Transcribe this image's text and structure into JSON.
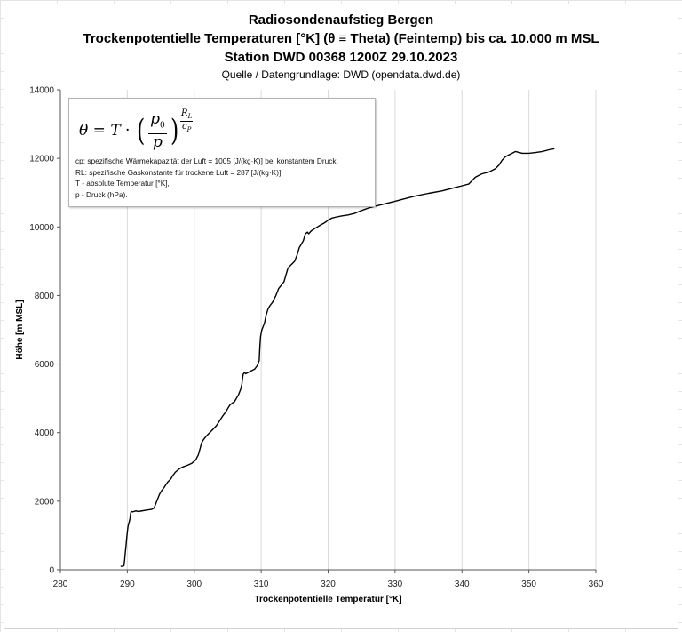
{
  "chart_data": {
    "type": "line",
    "title": [
      "Radiosondenaufstieg Bergen",
      "Trockenpotentielle Temperaturen [°K] (θ ≡ Theta) (Feintemp) bis ca. 10.000 m MSL",
      "Station DWD 00368 1200Z 29.10.2023"
    ],
    "subtitle": "Quelle / Datengrundlage: DWD (opendata.dwd.de)",
    "xlabel": "Trockenpotentielle Temperatur [°K]",
    "ylabel": "Höhe [m MSL]",
    "xlim": [
      280,
      360
    ],
    "ylim": [
      0,
      14000
    ],
    "x_ticks": [
      "280",
      "290",
      "300",
      "310",
      "320",
      "330",
      "340",
      "350",
      "360"
    ],
    "y_ticks": [
      "0",
      "2000",
      "4000",
      "6000",
      "8000",
      "10000",
      "12000",
      "14000"
    ],
    "grid": "vertical",
    "line_color": "#000000",
    "series": [
      {
        "x": [
          289.0,
          289.3,
          289.5,
          289.6,
          289.7,
          289.8,
          289.9,
          290.0,
          290.1,
          290.2,
          290.3,
          290.4,
          290.5,
          290.6,
          290.8,
          291.0,
          291.3,
          291.6,
          292.0,
          292.8,
          293.6,
          294.0,
          294.2,
          294.5,
          294.8,
          295.1,
          295.5,
          296.0,
          296.5,
          296.8,
          297.0,
          297.2,
          297.5,
          297.8,
          298.3,
          299.0,
          299.6,
          300.2,
          300.6,
          300.9,
          301.1,
          301.4,
          301.8,
          302.3,
          302.8,
          303.3,
          303.8,
          304.3,
          304.7,
          305.0,
          305.3,
          305.6,
          306.0,
          306.3,
          306.6,
          306.9,
          307.1,
          307.2,
          307.3,
          307.5,
          307.7,
          307.9,
          308.5,
          309.0,
          309.4,
          309.7,
          309.8,
          309.9,
          310.0,
          310.1,
          310.3,
          310.5,
          310.7,
          311.0,
          311.3,
          311.7,
          312.2,
          312.6,
          313.0,
          313.4,
          313.7,
          314.0,
          314.5,
          315.0,
          315.4,
          315.7,
          316.0,
          316.3,
          316.6,
          316.9,
          317.1,
          317.4,
          317.6,
          318.0,
          318.4,
          318.8,
          319.3,
          319.7,
          320.0,
          320.3,
          320.6,
          321.0,
          322.0,
          323.0,
          324.0,
          325.0,
          326.0,
          327.0,
          328.0,
          329.0,
          330.0,
          331.0,
          333.0,
          335.0,
          337.0,
          339.0,
          340.0,
          341.0,
          341.5,
          342.0,
          342.5,
          343.0,
          344.0,
          345.0,
          345.5,
          346.0,
          346.5,
          347.0,
          347.5,
          348.0,
          349.0,
          350.0,
          351.0,
          352.0,
          353.0,
          353.8
        ],
        "y": [
          100,
          100,
          120,
          300,
          500,
          700,
          900,
          1100,
          1250,
          1350,
          1400,
          1500,
          1650,
          1700,
          1690,
          1700,
          1720,
          1700,
          1710,
          1740,
          1760,
          1800,
          1900,
          2050,
          2200,
          2300,
          2400,
          2550,
          2650,
          2750,
          2800,
          2850,
          2900,
          2950,
          3000,
          3050,
          3100,
          3200,
          3350,
          3550,
          3700,
          3800,
          3900,
          4000,
          4100,
          4200,
          4350,
          4500,
          4600,
          4700,
          4800,
          4850,
          4900,
          5000,
          5100,
          5250,
          5400,
          5550,
          5700,
          5750,
          5720,
          5740,
          5800,
          5850,
          5950,
          6100,
          6500,
          6800,
          6900,
          7000,
          7100,
          7200,
          7400,
          7600,
          7700,
          7800,
          8000,
          8200,
          8300,
          8400,
          8600,
          8800,
          8900,
          9000,
          9200,
          9400,
          9500,
          9600,
          9800,
          9850,
          9800,
          9870,
          9900,
          9950,
          10000,
          10050,
          10100,
          10150,
          10200,
          10230,
          10260,
          10280,
          10320,
          10350,
          10400,
          10480,
          10550,
          10600,
          10650,
          10700,
          10750,
          10800,
          10900,
          10980,
          11050,
          11150,
          11200,
          11250,
          11350,
          11450,
          11500,
          11550,
          11600,
          11700,
          11800,
          11950,
          12050,
          12100,
          12150,
          12200,
          12150,
          12150,
          12170,
          12200,
          12250,
          12280
        ]
      }
    ]
  },
  "formula_box": {
    "lines": [
      "cp: spezifische Wärmekapazität der Luft = 1005 [J/(kg·K)] bei konstantem Druck,",
      "RL: spezifische Gaskonstante für trockene Luft = 287 [J/(kg·K)],",
      "T - absolute Temperatur [°K],",
      "p - Druck (hPa)."
    ]
  }
}
